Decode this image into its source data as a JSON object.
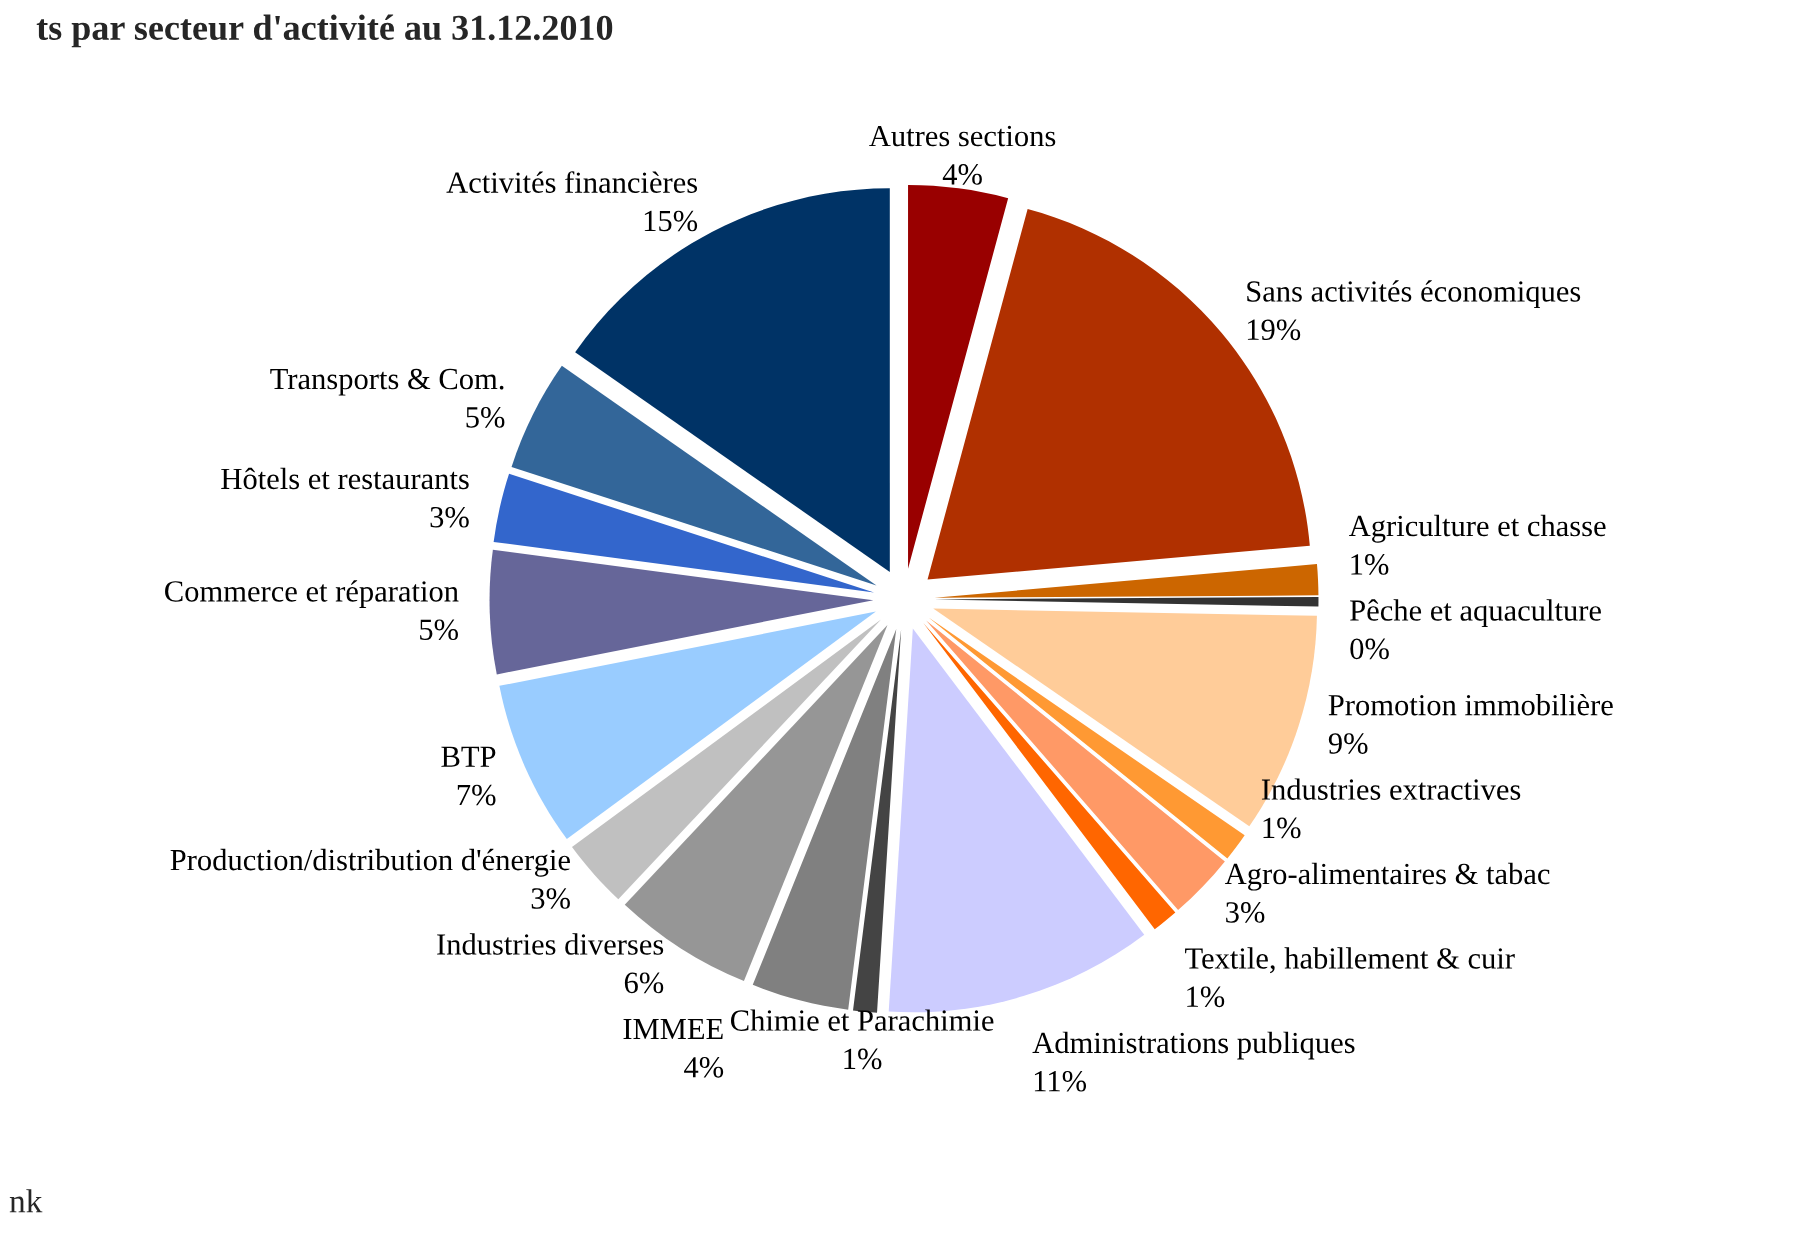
{
  "chart_data": {
    "type": "pie",
    "title": "ts par secteur d'activité au 31.12.2010",
    "annotations": [
      "nk"
    ],
    "categories": [
      "Autres sections",
      "Sans activités économiques",
      "Agriculture et chasse",
      "Pêche et aquaculture",
      "Promotion immobilière",
      "Industries extractives",
      "Agro-alimentaires & tabac",
      "Textile, habillement & cuir",
      "Administrations publiques",
      "Chimie et Parachimie",
      "IMMEE",
      "Industries diverses",
      "Production/distribution d'énergie",
      "BTP",
      "Commerce et réparation",
      "Hôtels et restaurants",
      "Transports & Com.",
      "Activités financières"
    ],
    "values": [
      4.2,
      19.4,
      1.3,
      0.4,
      9.3,
      1.2,
      2.8,
      1.1,
      11.3,
      1.0,
      4.1,
      5.9,
      2.9,
      7.0,
      5.2,
      2.9,
      4.7,
      15.3
    ],
    "value_labels": [
      "4%",
      "19%",
      "1%",
      "0%",
      "9%",
      "1%",
      "3%",
      "1%",
      "11%",
      "1%",
      "4%",
      "6%",
      "3%",
      "7%",
      "5%",
      "3%",
      "5%",
      "15%"
    ],
    "colors": [
      "#990000",
      "#b03000",
      "#cc6600",
      "#333333",
      "#ffcc99",
      "#ff9933",
      "#ff9966",
      "#ff6600",
      "#ccccff",
      "#444444",
      "#808080",
      "#969696",
      "#c0c0c0",
      "#99ccff",
      "#666699",
      "#3366cc",
      "#336699",
      "#003366"
    ]
  }
}
